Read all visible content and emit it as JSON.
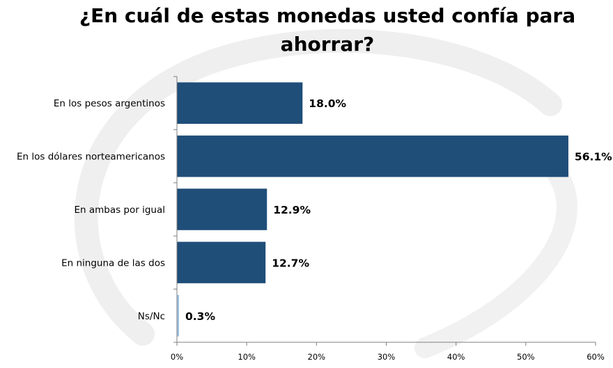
{
  "chart_data": {
    "type": "bar",
    "orientation": "horizontal",
    "title": "¿En cuál de estas monedas usted confía para ahorrar?",
    "categories": [
      "En los pesos argentinos",
      "En los dólares norteamericanos",
      "En ambas por igual",
      "En ninguna de las dos",
      "Ns/Nc"
    ],
    "values": [
      18.0,
      56.1,
      12.9,
      12.7,
      0.3
    ],
    "value_labels": [
      "18.0%",
      "56.1%",
      "12.9%",
      "12.7%",
      "0.3%"
    ],
    "bar_colors": [
      "#1f4e79",
      "#1f4e79",
      "#1f4e79",
      "#1f4e79",
      "#9dc3e6"
    ],
    "xlim": [
      0,
      60
    ],
    "xticks": [
      "0%",
      "10%",
      "20%",
      "30%",
      "40%",
      "50%",
      "60%"
    ],
    "grid": false,
    "legend": "none"
  }
}
